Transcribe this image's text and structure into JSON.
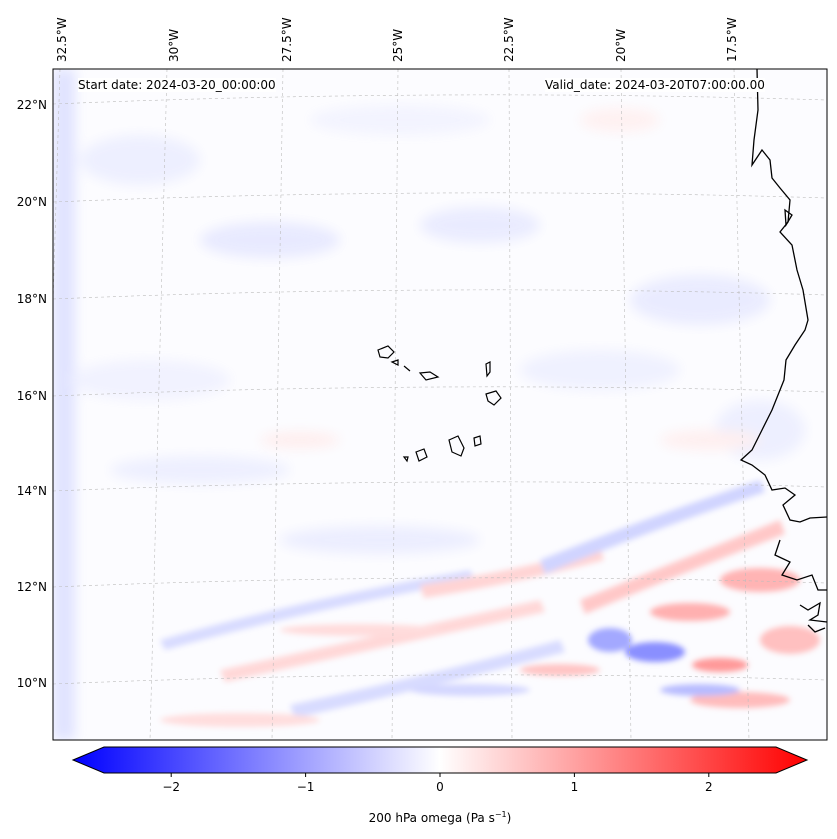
{
  "map": {
    "start_date": "Start date: 2024-03-20_00:00:00",
    "valid_date": "Valid_date: 2024-03-20T07:00:00.00",
    "lon_labels": [
      "32.5°W",
      "30°W",
      "27.5°W",
      "25°W",
      "22.5°W",
      "20°W",
      "17.5°W"
    ],
    "lat_labels": [
      "22°N",
      "20°N",
      "18°N",
      "16°N",
      "14°N",
      "12°N",
      "10°N"
    ],
    "field": "200 hPa omega",
    "colormap": "bwr",
    "colors": {
      "negative": "#0000ff",
      "zero": "#ffffff",
      "positive": "#ff0000",
      "coastline": "#000000",
      "gridline": "#b0b0b0"
    }
  },
  "colorbar": {
    "ticks": [
      "−2",
      "−1",
      "0",
      "1",
      "2"
    ],
    "tick_values": [
      -2,
      -1,
      0,
      1,
      2
    ],
    "range": [
      -2.5,
      2.5
    ],
    "label_main": "200 hPa omega (Pa s",
    "label_sup": "−1",
    "label_end": ")"
  }
}
